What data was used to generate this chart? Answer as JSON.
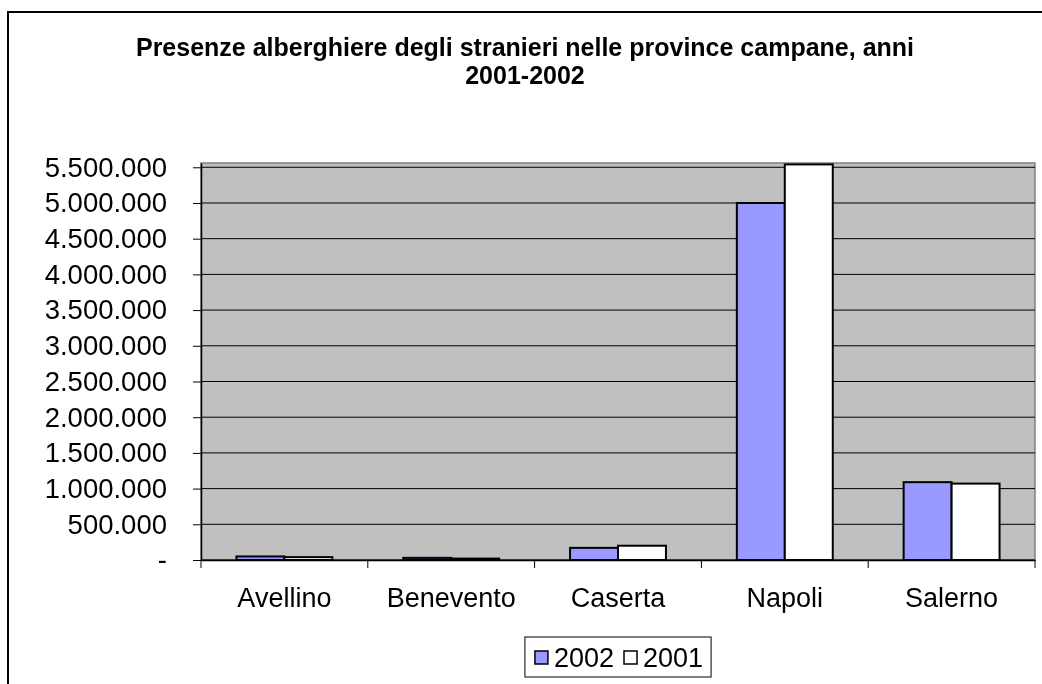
{
  "chart_data": {
    "type": "bar",
    "title": "Presenze alberghiere degli stranieri nelle province campane, anni 2001-2002",
    "categories": [
      "Avellino",
      "Benevento",
      "Caserta",
      "Napoli",
      "Salerno"
    ],
    "series": [
      {
        "name": "2002",
        "color": "#9999ff",
        "values": [
          50000,
          30000,
          170000,
          5000000,
          1090000
        ]
      },
      {
        "name": "2001",
        "color": "#ffffff",
        "values": [
          40000,
          20000,
          200000,
          5540000,
          1070000
        ]
      }
    ],
    "ylim": [
      0,
      5560000
    ],
    "yticks": [
      {
        "value": 0,
        "label": "-"
      },
      {
        "value": 500000,
        "label": "500.000"
      },
      {
        "value": 1000000,
        "label": "1.000.000"
      },
      {
        "value": 1500000,
        "label": "1.500.000"
      },
      {
        "value": 2000000,
        "label": "2.000.000"
      },
      {
        "value": 2500000,
        "label": "2.500.000"
      },
      {
        "value": 3000000,
        "label": "3.000.000"
      },
      {
        "value": 3500000,
        "label": "3.500.000"
      },
      {
        "value": 4000000,
        "label": "4.000.000"
      },
      {
        "value": 4500000,
        "label": "4.500.000"
      },
      {
        "value": 5000000,
        "label": "5.000.000"
      },
      {
        "value": 5500000,
        "label": "5.500.000"
      }
    ],
    "grid": "y",
    "legend": "bottom"
  }
}
